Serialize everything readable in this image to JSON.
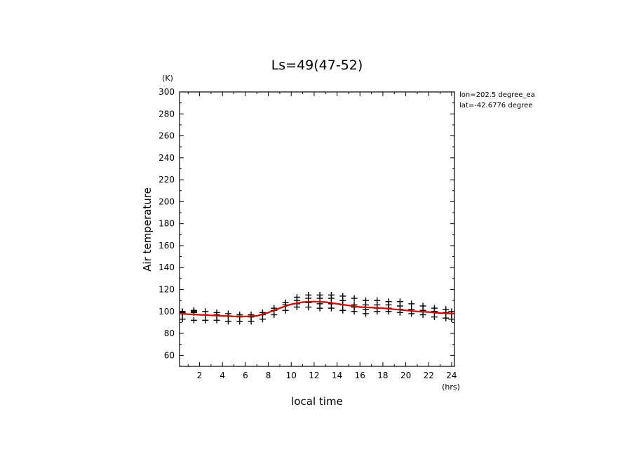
{
  "chart_data": {
    "type": "scatter",
    "title": "Ls=49(47-52)",
    "xlabel": "local time",
    "ylabel": "Air temperature",
    "x_unit": "(hrs)",
    "y_unit": "(K)",
    "xlim": [
      0.25,
      24.25
    ],
    "ylim": [
      50,
      300
    ],
    "xticks": [
      2,
      4,
      6,
      8,
      10,
      12,
      14,
      16,
      18,
      20,
      22,
      24
    ],
    "yticks": [
      60,
      80,
      100,
      120,
      140,
      160,
      180,
      200,
      220,
      240,
      260,
      280,
      300
    ],
    "annotations": [
      "lon=202.5 degree_ea",
      "lat=-42.6776 degree"
    ],
    "series": [
      {
        "kind": "points",
        "color": "#000000",
        "marker": "plus",
        "x": [
          0.5,
          0.5,
          0.5,
          0.5,
          1.5,
          1.5,
          1.5,
          1.5,
          2.5,
          2.5,
          2.5,
          3.5,
          3.5,
          3.5,
          4.5,
          4.5,
          4.5,
          5.5,
          5.5,
          5.5,
          6.5,
          6.5,
          6.5,
          7.5,
          7.5,
          7.5,
          8.5,
          8.5,
          8.5,
          9.5,
          9.5,
          9.5,
          10.5,
          10.5,
          10.5,
          10.5,
          11.5,
          11.5,
          11.5,
          11.5,
          12.5,
          12.5,
          12.5,
          12.5,
          13.5,
          13.5,
          13.5,
          13.5,
          14.5,
          14.5,
          14.5,
          14.5,
          15.5,
          15.5,
          15.5,
          15.5,
          16.5,
          16.5,
          16.5,
          16.5,
          17.5,
          17.5,
          17.5,
          17.5,
          18.5,
          18.5,
          18.5,
          18.5,
          19.5,
          19.5,
          19.5,
          19.5,
          20.5,
          20.5,
          20.5,
          21.5,
          21.5,
          21.5,
          22.5,
          22.5,
          22.5,
          23.5,
          23.5,
          23.5,
          24.0,
          24.0,
          24.0
        ],
        "y": [
          100,
          98,
          93,
          99,
          101,
          99,
          92,
          100,
          100,
          97,
          92,
          99,
          97,
          92,
          98,
          96,
          91,
          97,
          95,
          91,
          97,
          95,
          91,
          99,
          97,
          93,
          103,
          101,
          97,
          108,
          106,
          101,
          113,
          110,
          107,
          104,
          115,
          112,
          108,
          104,
          115,
          112,
          107,
          103,
          115,
          112,
          107,
          103,
          114,
          110,
          106,
          101,
          112,
          106,
          104,
          100,
          110,
          106,
          102,
          98,
          110,
          106,
          103,
          100,
          109,
          106,
          103,
          100,
          109,
          105,
          102,
          99,
          107,
          102,
          98,
          105,
          101,
          97,
          103,
          100,
          95,
          102,
          99,
          94,
          100,
          98,
          93
        ]
      },
      {
        "kind": "line",
        "color": "#cc0000",
        "x": [
          0.25,
          1,
          2,
          3,
          4,
          5,
          6,
          7,
          8,
          9,
          10,
          11,
          12,
          13,
          14,
          15,
          16,
          17,
          18,
          19,
          20,
          21,
          22,
          23,
          24.25
        ],
        "y": [
          98,
          97.5,
          97,
          96.5,
          96,
          95.5,
          95.5,
          96,
          99,
          103,
          106.5,
          108.5,
          109,
          108.5,
          107,
          105.5,
          104,
          103.5,
          103,
          102,
          101,
          100,
          99.5,
          98.5,
          98
        ]
      }
    ]
  }
}
